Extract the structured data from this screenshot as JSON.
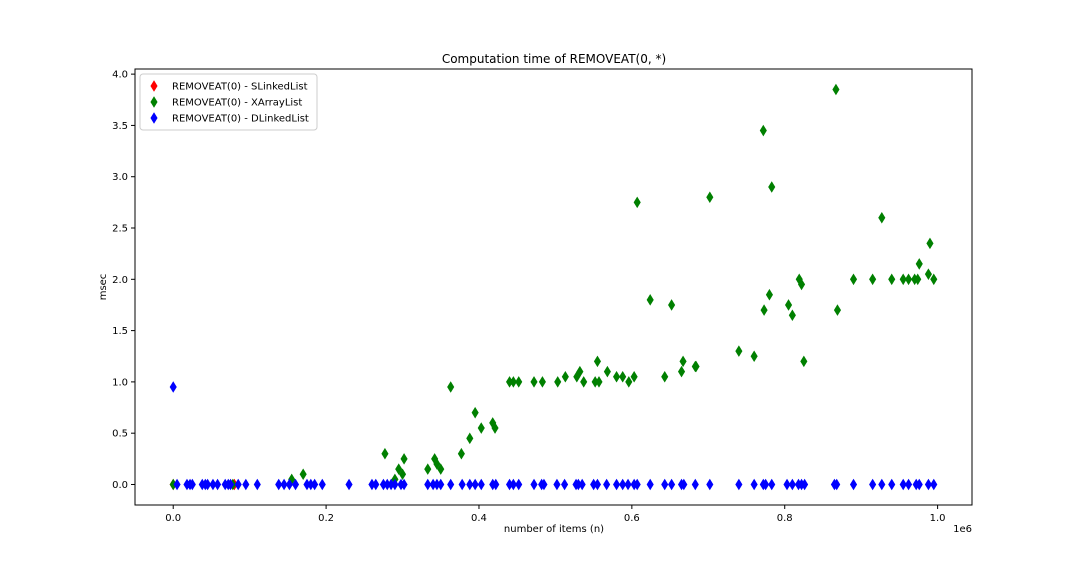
{
  "chart_data": {
    "type": "scatter",
    "title": "Computation time of REMOVEAT(0, *)",
    "xlabel": "number of items (n)",
    "ylabel": "msec",
    "x_offset_text": "1e6",
    "xlim": [
      -0.05,
      1.045
    ],
    "ylim": [
      -0.2,
      4.05
    ],
    "x_ticks": [
      0.0,
      0.2,
      0.4,
      0.6,
      0.8,
      1.0
    ],
    "x_tick_labels": [
      "0.0",
      "0.2",
      "0.4",
      "0.6",
      "0.8",
      "1.0"
    ],
    "y_ticks": [
      0.0,
      0.5,
      1.0,
      1.5,
      2.0,
      2.5,
      3.0,
      3.5,
      4.0
    ],
    "y_tick_labels": [
      "0.0",
      "0.5",
      "1.0",
      "1.5",
      "2.0",
      "2.5",
      "3.0",
      "3.5",
      "4.0"
    ],
    "grid": false,
    "legend_position": "top-left",
    "marker": "thin-diamond",
    "series": [
      {
        "name": "REMOVEAT(0) - SLinkedList",
        "color": "#ff0000",
        "points": [
          [
            0.0,
            0.0
          ],
          [
            0.08,
            0.0
          ]
        ]
      },
      {
        "name": "REMOVEAT(0) - XArrayList",
        "color": "#008000",
        "points": [
          [
            0.0,
            0.0
          ],
          [
            0.078,
            0.0
          ],
          [
            0.155,
            0.05
          ],
          [
            0.17,
            0.1
          ],
          [
            0.277,
            0.3
          ],
          [
            0.29,
            0.05
          ],
          [
            0.295,
            0.15
          ],
          [
            0.3,
            0.1
          ],
          [
            0.302,
            0.25
          ],
          [
            0.333,
            0.15
          ],
          [
            0.342,
            0.25
          ],
          [
            0.345,
            0.2
          ],
          [
            0.35,
            0.15
          ],
          [
            0.363,
            0.95
          ],
          [
            0.377,
            0.3
          ],
          [
            0.388,
            0.45
          ],
          [
            0.395,
            0.7
          ],
          [
            0.403,
            0.55
          ],
          [
            0.418,
            0.6
          ],
          [
            0.421,
            0.55
          ],
          [
            0.44,
            1.0
          ],
          [
            0.445,
            1.0
          ],
          [
            0.452,
            1.0
          ],
          [
            0.472,
            1.0
          ],
          [
            0.483,
            1.0
          ],
          [
            0.503,
            1.0
          ],
          [
            0.513,
            1.05
          ],
          [
            0.528,
            1.05
          ],
          [
            0.532,
            1.1
          ],
          [
            0.537,
            1.0
          ],
          [
            0.552,
            1.0
          ],
          [
            0.555,
            1.2
          ],
          [
            0.557,
            1.0
          ],
          [
            0.568,
            1.1
          ],
          [
            0.58,
            1.05
          ],
          [
            0.588,
            1.05
          ],
          [
            0.596,
            1.0
          ],
          [
            0.603,
            1.05
          ],
          [
            0.607,
            2.75
          ],
          [
            0.624,
            1.8
          ],
          [
            0.643,
            1.05
          ],
          [
            0.652,
            1.75
          ],
          [
            0.665,
            1.1
          ],
          [
            0.667,
            1.2
          ],
          [
            0.683,
            1.15
          ],
          [
            0.684,
            1.15
          ],
          [
            0.702,
            2.8
          ],
          [
            0.74,
            1.3
          ],
          [
            0.76,
            1.25
          ],
          [
            0.772,
            3.45
          ],
          [
            0.773,
            1.7
          ],
          [
            0.78,
            1.85
          ],
          [
            0.783,
            2.9
          ],
          [
            0.805,
            1.75
          ],
          [
            0.81,
            1.65
          ],
          [
            0.819,
            2.0
          ],
          [
            0.822,
            1.95
          ],
          [
            0.825,
            1.2
          ],
          [
            0.867,
            3.85
          ],
          [
            0.869,
            1.7
          ],
          [
            0.89,
            2.0
          ],
          [
            0.915,
            2.0
          ],
          [
            0.927,
            2.6
          ],
          [
            0.94,
            2.0
          ],
          [
            0.955,
            2.0
          ],
          [
            0.962,
            2.0
          ],
          [
            0.97,
            2.0
          ],
          [
            0.974,
            2.0
          ],
          [
            0.976,
            2.15
          ],
          [
            0.988,
            2.05
          ],
          [
            0.99,
            2.35
          ],
          [
            0.995,
            2.0
          ]
        ]
      },
      {
        "name": "REMOVEAT(0) - DLinkedList",
        "color": "#0000ff",
        "points": [
          [
            0.0,
            0.95
          ],
          [
            0.005,
            0.0
          ],
          [
            0.018,
            0.0
          ],
          [
            0.022,
            0.0
          ],
          [
            0.025,
            0.0
          ],
          [
            0.038,
            0.0
          ],
          [
            0.042,
            0.0
          ],
          [
            0.045,
            0.0
          ],
          [
            0.052,
            0.0
          ],
          [
            0.058,
            0.0
          ],
          [
            0.068,
            0.0
          ],
          [
            0.072,
            0.0
          ],
          [
            0.075,
            0.0
          ],
          [
            0.085,
            0.0
          ],
          [
            0.095,
            0.0
          ],
          [
            0.11,
            0.0
          ],
          [
            0.138,
            0.0
          ],
          [
            0.145,
            0.0
          ],
          [
            0.152,
            0.0
          ],
          [
            0.16,
            0.0
          ],
          [
            0.175,
            0.0
          ],
          [
            0.18,
            0.0
          ],
          [
            0.185,
            0.0
          ],
          [
            0.195,
            0.0
          ],
          [
            0.23,
            0.0
          ],
          [
            0.26,
            0.0
          ],
          [
            0.265,
            0.0
          ],
          [
            0.275,
            0.0
          ],
          [
            0.28,
            0.0
          ],
          [
            0.285,
            0.0
          ],
          [
            0.29,
            0.0
          ],
          [
            0.298,
            0.0
          ],
          [
            0.302,
            0.0
          ],
          [
            0.333,
            0.0
          ],
          [
            0.34,
            0.0
          ],
          [
            0.345,
            0.0
          ],
          [
            0.35,
            0.0
          ],
          [
            0.363,
            0.0
          ],
          [
            0.378,
            0.0
          ],
          [
            0.388,
            0.0
          ],
          [
            0.395,
            0.0
          ],
          [
            0.403,
            0.0
          ],
          [
            0.418,
            0.0
          ],
          [
            0.422,
            0.0
          ],
          [
            0.44,
            0.0
          ],
          [
            0.445,
            0.0
          ],
          [
            0.452,
            0.0
          ],
          [
            0.472,
            0.0
          ],
          [
            0.482,
            0.0
          ],
          [
            0.485,
            0.0
          ],
          [
            0.502,
            0.0
          ],
          [
            0.512,
            0.0
          ],
          [
            0.527,
            0.0
          ],
          [
            0.53,
            0.0
          ],
          [
            0.535,
            0.0
          ],
          [
            0.55,
            0.0
          ],
          [
            0.555,
            0.0
          ],
          [
            0.567,
            0.0
          ],
          [
            0.58,
            0.0
          ],
          [
            0.588,
            0.0
          ],
          [
            0.595,
            0.0
          ],
          [
            0.603,
            0.0
          ],
          [
            0.607,
            0.0
          ],
          [
            0.624,
            0.0
          ],
          [
            0.643,
            0.0
          ],
          [
            0.652,
            0.0
          ],
          [
            0.665,
            0.0
          ],
          [
            0.668,
            0.0
          ],
          [
            0.683,
            0.0
          ],
          [
            0.702,
            0.0
          ],
          [
            0.74,
            0.0
          ],
          [
            0.76,
            0.0
          ],
          [
            0.772,
            0.0
          ],
          [
            0.775,
            0.0
          ],
          [
            0.783,
            0.0
          ],
          [
            0.803,
            0.0
          ],
          [
            0.81,
            0.0
          ],
          [
            0.818,
            0.0
          ],
          [
            0.822,
            0.0
          ],
          [
            0.826,
            0.0
          ],
          [
            0.865,
            0.0
          ],
          [
            0.868,
            0.0
          ],
          [
            0.89,
            0.0
          ],
          [
            0.915,
            0.0
          ],
          [
            0.927,
            0.0
          ],
          [
            0.94,
            0.0
          ],
          [
            0.955,
            0.0
          ],
          [
            0.962,
            0.0
          ],
          [
            0.972,
            0.0
          ],
          [
            0.976,
            0.0
          ],
          [
            0.988,
            0.0
          ],
          [
            0.995,
            0.0
          ]
        ]
      }
    ]
  }
}
